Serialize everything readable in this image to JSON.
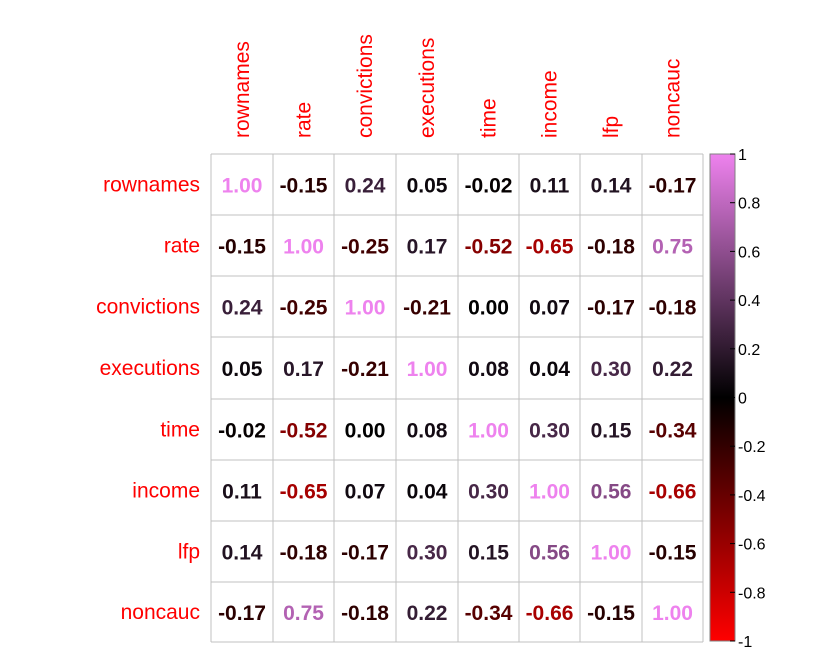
{
  "chart_data": {
    "type": "heatmap",
    "title": "",
    "variables": [
      "rownames",
      "rate",
      "convictions",
      "executions",
      "time",
      "income",
      "lfp",
      "noncauc"
    ],
    "matrix": [
      [
        1.0,
        -0.15,
        0.24,
        0.05,
        -0.02,
        0.11,
        0.14,
        -0.17
      ],
      [
        -0.15,
        1.0,
        -0.25,
        0.17,
        -0.52,
        -0.65,
        -0.18,
        0.75
      ],
      [
        0.24,
        -0.25,
        1.0,
        -0.21,
        0.0,
        0.07,
        -0.17,
        -0.18
      ],
      [
        0.05,
        0.17,
        -0.21,
        1.0,
        0.08,
        0.04,
        0.3,
        0.22
      ],
      [
        -0.02,
        -0.52,
        0.0,
        0.08,
        1.0,
        0.3,
        0.15,
        -0.34
      ],
      [
        0.11,
        -0.65,
        0.07,
        0.04,
        0.3,
        1.0,
        0.56,
        -0.66
      ],
      [
        0.14,
        -0.18,
        -0.17,
        0.3,
        0.15,
        0.56,
        1.0,
        -0.15
      ],
      [
        -0.17,
        0.75,
        -0.18,
        0.22,
        -0.34,
        -0.66,
        -0.15,
        1.0
      ]
    ],
    "colorbar": {
      "range": [
        -1,
        1
      ],
      "ticks": [
        1,
        0.8,
        0.6,
        0.4,
        0.2,
        0,
        -0.2,
        -0.4,
        -0.6,
        -0.8,
        -1
      ],
      "tick_labels": [
        "1",
        "0.8",
        "0.6",
        "0.4",
        "0.2",
        "0",
        "-0.2",
        "-0.4",
        "-0.6",
        "-0.8",
        "-1"
      ],
      "colors": {
        "low": "#ff0000",
        "mid": "#000000",
        "high": "#ee82ee"
      }
    },
    "label_color": "#ff0000",
    "grid_color": "#c0c0c0"
  }
}
